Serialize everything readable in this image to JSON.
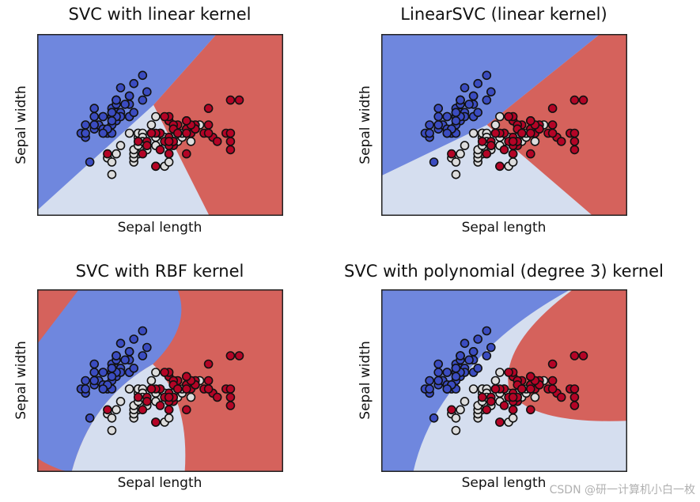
{
  "chart_data": {
    "type": "scatter",
    "xlim": [
      3.3,
      8.9
    ],
    "ylim": [
      1.0,
      5.4
    ],
    "grid": false,
    "ticks_shown": false,
    "region_colors": {
      "class0": "#6F87DE",
      "class1": "#D5DEEF",
      "class2": "#D5625C"
    },
    "point_colors": {
      "class0": "#3B4CC0",
      "class1": "#DDDDDD",
      "class2": "#B40426"
    },
    "series": [
      {
        "class": 0,
        "points": [
          [
            5.1,
            3.5
          ],
          [
            4.9,
            3.0
          ],
          [
            4.7,
            3.2
          ],
          [
            4.6,
            3.1
          ],
          [
            5.0,
            3.6
          ],
          [
            5.4,
            3.9
          ],
          [
            4.6,
            3.4
          ],
          [
            5.0,
            3.4
          ],
          [
            4.4,
            2.9
          ],
          [
            4.9,
            3.1
          ],
          [
            5.4,
            3.7
          ],
          [
            4.8,
            3.4
          ],
          [
            4.8,
            3.0
          ],
          [
            4.3,
            3.0
          ],
          [
            5.8,
            4.0
          ],
          [
            5.7,
            4.4
          ],
          [
            5.4,
            3.9
          ],
          [
            5.1,
            3.5
          ],
          [
            5.7,
            3.8
          ],
          [
            5.1,
            3.8
          ],
          [
            5.4,
            3.4
          ],
          [
            5.1,
            3.7
          ],
          [
            4.6,
            3.6
          ],
          [
            5.1,
            3.3
          ],
          [
            4.8,
            3.4
          ],
          [
            5.0,
            3.0
          ],
          [
            5.0,
            3.4
          ],
          [
            5.2,
            3.5
          ],
          [
            5.2,
            3.4
          ],
          [
            4.7,
            3.2
          ],
          [
            4.8,
            3.1
          ],
          [
            5.4,
            3.4
          ],
          [
            5.2,
            4.1
          ],
          [
            5.5,
            4.2
          ],
          [
            4.9,
            3.1
          ],
          [
            5.0,
            3.2
          ],
          [
            5.5,
            3.5
          ],
          [
            4.9,
            3.1
          ],
          [
            4.4,
            3.0
          ],
          [
            5.1,
            3.4
          ],
          [
            5.0,
            3.5
          ],
          [
            4.5,
            2.3
          ],
          [
            4.4,
            3.2
          ],
          [
            5.0,
            3.5
          ],
          [
            5.1,
            3.8
          ],
          [
            4.8,
            3.0
          ],
          [
            5.1,
            3.8
          ],
          [
            4.6,
            3.2
          ],
          [
            5.3,
            3.7
          ],
          [
            5.0,
            3.3
          ]
        ]
      },
      {
        "class": 1,
        "points": [
          [
            7.0,
            3.2
          ],
          [
            6.4,
            3.2
          ],
          [
            6.9,
            3.1
          ],
          [
            5.5,
            2.3
          ],
          [
            6.5,
            2.8
          ],
          [
            5.7,
            2.8
          ],
          [
            6.3,
            3.3
          ],
          [
            4.9,
            2.4
          ],
          [
            6.6,
            2.9
          ],
          [
            5.2,
            2.7
          ],
          [
            5.0,
            2.0
          ],
          [
            5.9,
            3.0
          ],
          [
            6.0,
            2.2
          ],
          [
            6.1,
            2.9
          ],
          [
            5.6,
            2.9
          ],
          [
            6.7,
            3.1
          ],
          [
            5.6,
            3.0
          ],
          [
            5.8,
            2.7
          ],
          [
            6.2,
            2.2
          ],
          [
            5.6,
            2.5
          ],
          [
            5.9,
            3.2
          ],
          [
            6.1,
            2.8
          ],
          [
            6.3,
            2.5
          ],
          [
            6.1,
            2.8
          ],
          [
            6.4,
            2.9
          ],
          [
            6.6,
            3.0
          ],
          [
            6.8,
            2.8
          ],
          [
            6.7,
            3.0
          ],
          [
            6.0,
            2.9
          ],
          [
            5.7,
            2.6
          ],
          [
            5.5,
            2.4
          ],
          [
            5.5,
            2.4
          ],
          [
            5.8,
            2.7
          ],
          [
            6.0,
            2.7
          ],
          [
            5.4,
            3.0
          ],
          [
            6.0,
            3.4
          ],
          [
            6.7,
            3.1
          ],
          [
            6.3,
            2.3
          ],
          [
            5.6,
            3.0
          ],
          [
            5.5,
            2.5
          ],
          [
            5.5,
            2.6
          ],
          [
            6.1,
            3.0
          ],
          [
            5.8,
            2.6
          ],
          [
            5.0,
            2.3
          ],
          [
            5.6,
            2.7
          ],
          [
            5.7,
            3.0
          ],
          [
            5.7,
            2.9
          ],
          [
            6.2,
            2.9
          ],
          [
            5.1,
            2.5
          ],
          [
            5.7,
            2.8
          ]
        ]
      },
      {
        "class": 2,
        "points": [
          [
            6.3,
            3.3
          ],
          [
            5.8,
            2.7
          ],
          [
            7.1,
            3.0
          ],
          [
            6.3,
            2.9
          ],
          [
            6.5,
            3.0
          ],
          [
            7.6,
            3.0
          ],
          [
            4.9,
            2.5
          ],
          [
            7.3,
            2.9
          ],
          [
            6.7,
            2.5
          ],
          [
            7.2,
            3.6
          ],
          [
            6.5,
            3.2
          ],
          [
            6.4,
            2.7
          ],
          [
            6.8,
            3.0
          ],
          [
            5.7,
            2.5
          ],
          [
            5.8,
            2.8
          ],
          [
            6.4,
            3.2
          ],
          [
            6.5,
            3.0
          ],
          [
            7.7,
            3.8
          ],
          [
            7.7,
            2.6
          ],
          [
            6.0,
            2.2
          ],
          [
            6.9,
            3.2
          ],
          [
            5.6,
            2.8
          ],
          [
            7.7,
            2.8
          ],
          [
            6.3,
            2.7
          ],
          [
            6.7,
            3.3
          ],
          [
            7.2,
            3.2
          ],
          [
            6.2,
            2.8
          ],
          [
            6.1,
            3.0
          ],
          [
            6.4,
            2.8
          ],
          [
            7.2,
            3.0
          ],
          [
            7.4,
            2.8
          ],
          [
            7.9,
            3.8
          ],
          [
            6.4,
            2.8
          ],
          [
            6.3,
            2.8
          ],
          [
            6.1,
            2.6
          ],
          [
            7.7,
            3.0
          ],
          [
            6.3,
            3.4
          ],
          [
            6.4,
            3.1
          ],
          [
            6.0,
            3.0
          ],
          [
            6.9,
            3.1
          ],
          [
            6.7,
            3.1
          ],
          [
            6.9,
            3.1
          ],
          [
            5.8,
            2.7
          ],
          [
            6.8,
            3.2
          ],
          [
            6.7,
            3.3
          ],
          [
            6.7,
            3.0
          ],
          [
            6.3,
            2.5
          ],
          [
            6.5,
            3.0
          ],
          [
            6.2,
            3.4
          ],
          [
            5.9,
            3.0
          ]
        ]
      }
    ],
    "subplots": [
      {
        "title": "SVC with linear kernel",
        "xlabel": "Sepal length",
        "ylabel": "Sepal width"
      },
      {
        "title": "LinearSVC (linear kernel)",
        "xlabel": "Sepal length",
        "ylabel": "Sepal width"
      },
      {
        "title": "SVC with RBF kernel",
        "xlabel": "Sepal length",
        "ylabel": "Sepal width"
      },
      {
        "title": "SVC with polynomial (degree 3) kernel",
        "xlabel": "Sepal length",
        "ylabel": "Sepal width"
      }
    ]
  },
  "watermark": "CSDN @研一计算机小白一枚"
}
